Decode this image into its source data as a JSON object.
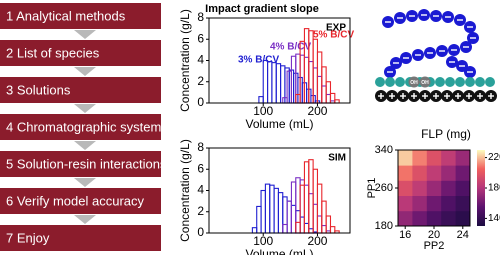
{
  "steps": [
    "1 Analytical methods",
    "2 List of species",
    "3 Solutions",
    "4 Chromatographic system",
    "5 Solution-resin interactions",
    "6 Verify model accuracy",
    "7 Enjoy"
  ],
  "resin": {
    "labels": [
      "OH",
      "OH"
    ]
  },
  "chart_data": [
    {
      "type": "histogram",
      "title": "Impact gradient slope",
      "annotation": "EXP",
      "x_label": "Volume (mL)",
      "y_label": "Concentration (g/L)",
      "xlim": [
        0,
        260
      ],
      "ylim": [
        0,
        8
      ],
      "xticks": [
        100,
        200
      ],
      "yticks": [
        0,
        2,
        4,
        6,
        8
      ],
      "series": [
        {
          "name": "3% B/CV",
          "color": "#1f1fd1",
          "bins": [
            92,
            100,
            108,
            116,
            124,
            132,
            140,
            148,
            156,
            164,
            172,
            180,
            188,
            196,
            204
          ],
          "values": [
            0.6,
            4.0,
            3.9,
            3.8,
            3.7,
            3.5,
            3.3,
            3.1,
            2.8,
            2.4,
            1.9,
            1.3,
            0.7,
            0.2
          ]
        },
        {
          "name": "4% B/CV",
          "color": "#7a2fc4",
          "bins": [
            136,
            144,
            152,
            160,
            168,
            176,
            184,
            192,
            200,
            208,
            216,
            224,
            232
          ],
          "values": [
            0.5,
            3.0,
            4.4,
            4.6,
            4.5,
            4.3,
            3.9,
            3.3,
            2.5,
            1.6,
            0.8,
            0.2
          ]
        },
        {
          "name": "5% B/CV",
          "color": "#e8262c",
          "bins": [
            160,
            168,
            176,
            184,
            192,
            200,
            208,
            216,
            224,
            232,
            240
          ],
          "values": [
            0.8,
            5.8,
            7.0,
            6.8,
            6.0,
            4.8,
            3.4,
            2.0,
            0.9,
            0.3
          ]
        }
      ]
    },
    {
      "type": "histogram",
      "annotation": "SIM",
      "x_label": "Volume (mL)",
      "y_label": "Concentration (g/L)",
      "xlim": [
        0,
        260
      ],
      "ylim": [
        0,
        8
      ],
      "xticks": [
        100,
        200
      ],
      "yticks": [
        0,
        2,
        4,
        6,
        8
      ],
      "series": [
        {
          "color": "#1f1fd1",
          "bins": [
            80,
            88,
            96,
            104,
            112,
            120,
            128,
            136,
            144,
            152,
            160,
            168,
            176,
            184,
            192,
            200
          ],
          "values": [
            0.5,
            2.5,
            4.0,
            4.6,
            4.5,
            4.2,
            3.8,
            3.4,
            3.0,
            2.6,
            2.1,
            1.5,
            0.9,
            0.4,
            0.1
          ]
        },
        {
          "color": "#7a2fc4",
          "bins": [
            136,
            144,
            152,
            160,
            168,
            176,
            184,
            192,
            200,
            208,
            216,
            224
          ],
          "values": [
            0.8,
            3.0,
            4.8,
            5.2,
            5.0,
            4.5,
            3.7,
            2.7,
            1.6,
            0.7,
            0.2
          ]
        },
        {
          "color": "#e8262c",
          "bins": [
            160,
            168,
            176,
            184,
            192,
            200,
            208,
            216,
            224,
            232,
            240
          ],
          "values": [
            1.0,
            4.5,
            6.7,
            6.9,
            6.0,
            4.6,
            3.0,
            1.6,
            0.6,
            0.2
          ]
        }
      ]
    },
    {
      "type": "heatmap",
      "title": "FLP (mg)",
      "x_label": "PP2",
      "y_label": "PP1",
      "xlim": [
        15,
        25
      ],
      "ylim": [
        180,
        340
      ],
      "xticks": [
        16,
        20,
        24
      ],
      "yticks": [
        180,
        260,
        340
      ],
      "x_edges": [
        15,
        17,
        19,
        21,
        23,
        25
      ],
      "y_edges": [
        180,
        212,
        244,
        276,
        308,
        340
      ],
      "z": [
        [
          170,
          160,
          150,
          142,
          136
        ],
        [
          182,
          172,
          160,
          150,
          142
        ],
        [
          195,
          184,
          172,
          160,
          150
        ],
        [
          208,
          196,
          184,
          172,
          160
        ],
        [
          222,
          210,
          196,
          184,
          172
        ]
      ],
      "clim": [
        130,
        230
      ],
      "cticks": [
        140,
        180,
        220
      ]
    }
  ]
}
